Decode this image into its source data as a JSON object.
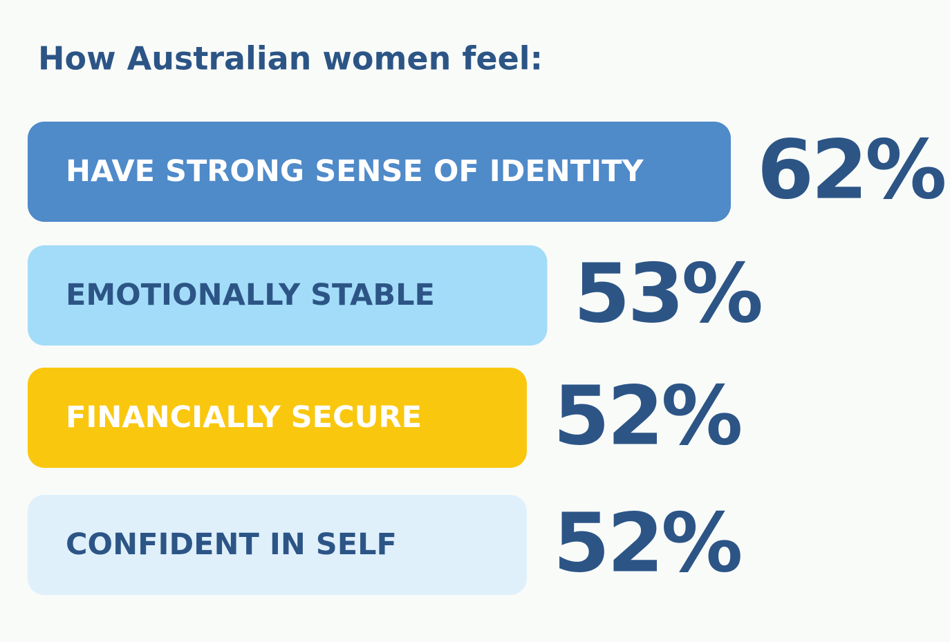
{
  "chart_data": {
    "type": "bar",
    "orientation": "horizontal",
    "title": "How Australian women feel:",
    "categories": [
      "HAVE STRONG SENSE OF IDENTITY",
      "EMOTIONALLY STABLE",
      "FINANCIALLY SECURE",
      "CONFIDENT IN SELF"
    ],
    "values": [
      62,
      53,
      52,
      52
    ],
    "value_labels": [
      "62%",
      "53%",
      "52%",
      "52%"
    ],
    "colors": [
      "#4f8ac9",
      "#a3dcf8",
      "#fac70f",
      "#dff0fb"
    ]
  }
}
